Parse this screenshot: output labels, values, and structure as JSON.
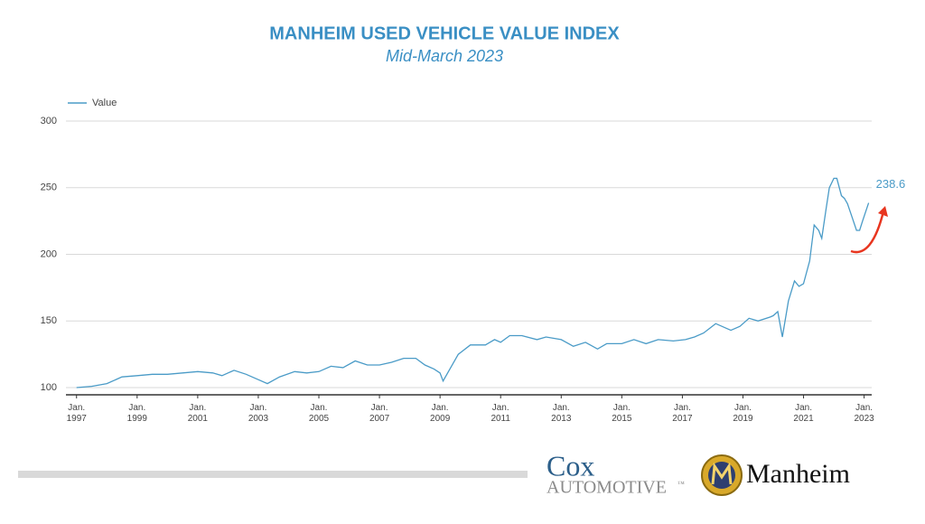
{
  "chart_data": {
    "type": "line",
    "title": "MANHEIM USED VEHICLE VALUE INDEX",
    "subtitle": "Mid-March 2023",
    "x": [
      1997.0,
      1997.5,
      1998.0,
      1998.5,
      1999.0,
      1999.5,
      2000.0,
      2000.5,
      2001.0,
      2001.5,
      2001.8,
      2002.2,
      2002.6,
      2003.0,
      2003.3,
      2003.7,
      2004.2,
      2004.6,
      2005.0,
      2005.4,
      2005.8,
      2006.2,
      2006.6,
      2007.0,
      2007.4,
      2007.8,
      2008.2,
      2008.5,
      2008.8,
      2009.0,
      2009.1,
      2009.3,
      2009.6,
      2010.0,
      2010.5,
      2010.8,
      2011.0,
      2011.3,
      2011.7,
      2012.2,
      2012.5,
      2013.0,
      2013.4,
      2013.8,
      2014.2,
      2014.5,
      2015.0,
      2015.4,
      2015.8,
      2016.2,
      2016.7,
      2017.1,
      2017.4,
      2017.7,
      2018.1,
      2018.6,
      2018.9,
      2019.2,
      2019.5,
      2019.9,
      2020.0,
      2020.15,
      2020.3,
      2020.5,
      2020.7,
      2020.85,
      2021.0,
      2021.2,
      2021.35,
      2021.5,
      2021.6,
      2021.75,
      2021.85,
      2022.0,
      2022.1,
      2022.25,
      2022.35,
      2022.45,
      2022.6,
      2022.75,
      2022.85,
      2022.95,
      2023.15
    ],
    "series": [
      {
        "name": "Value",
        "color": "#4a9bc7",
        "values": [
          100,
          101,
          103,
          108,
          109,
          110,
          110,
          111,
          112,
          111,
          109,
          113,
          110,
          106,
          103,
          108,
          112,
          111,
          112,
          116,
          115,
          120,
          117,
          117,
          119,
          122,
          122,
          117,
          114,
          111,
          105,
          113,
          125,
          132,
          132,
          136,
          134,
          139,
          139,
          136,
          138,
          136,
          131,
          134,
          129,
          133,
          133,
          136,
          133,
          136,
          135,
          136,
          138,
          141,
          148,
          143,
          146,
          152,
          150,
          153,
          154,
          157,
          138,
          165,
          180,
          176,
          178,
          195,
          222,
          218,
          212,
          235,
          250,
          257,
          257,
          244,
          242,
          238,
          228,
          218,
          218,
          225,
          238.6
        ]
      }
    ],
    "xlim": [
      1996.65,
      2023.25
    ],
    "xticks": [
      {
        "value": 1997,
        "label": "Jan.\n1997"
      },
      {
        "value": 1999,
        "label": "Jan.\n1999"
      },
      {
        "value": 2001,
        "label": "Jan.\n2001"
      },
      {
        "value": 2003,
        "label": "Jan.\n2003"
      },
      {
        "value": 2005,
        "label": "Jan.\n2005"
      },
      {
        "value": 2007,
        "label": "Jan.\n2007"
      },
      {
        "value": 2009,
        "label": "Jan.\n2009"
      },
      {
        "value": 2011,
        "label": "Jan.\n2011"
      },
      {
        "value": 2013,
        "label": "Jan.\n2013"
      },
      {
        "value": 2015,
        "label": "Jan.\n2015"
      },
      {
        "value": 2017,
        "label": "Jan.\n2017"
      },
      {
        "value": 2019,
        "label": "Jan.\n2019"
      },
      {
        "value": 2021,
        "label": "Jan.\n2021"
      },
      {
        "value": 2023,
        "label": "Jan.\n2023"
      }
    ],
    "ylim": [
      94.6,
      300
    ],
    "yticks": [
      100,
      150,
      200,
      250,
      300
    ],
    "grid": true,
    "legend": "top-left"
  },
  "logos": {
    "cox": "Cox",
    "automotive": "AUTOMOTIVE",
    "tm": "™",
    "manheim": "Manheim"
  }
}
